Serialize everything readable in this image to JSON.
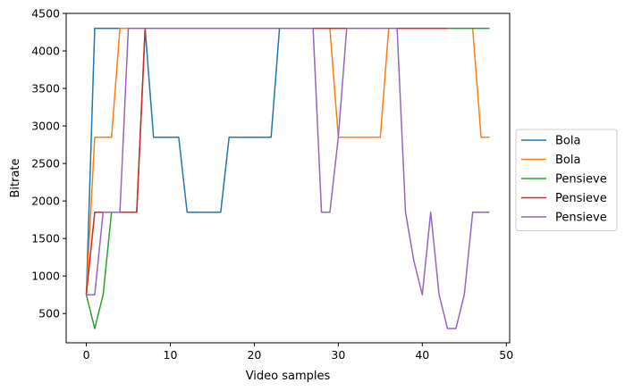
{
  "chart_data": {
    "type": "line",
    "xlabel": "Video samples",
    "ylabel": "Bitrate",
    "xlim": [
      -2.4,
      50.4
    ],
    "ylim": [
      110,
      4500
    ],
    "xticks": [
      0,
      10,
      20,
      30,
      40,
      50
    ],
    "yticks": [
      500,
      1000,
      1500,
      2000,
      2500,
      3000,
      3500,
      4000,
      4500
    ],
    "grid": false,
    "legend_position": "right",
    "series": [
      {
        "name": "Bola",
        "color": "#1f77b4",
        "x": [
          0,
          1,
          2,
          3,
          4,
          5,
          6,
          7,
          8,
          9,
          10,
          11,
          12,
          13,
          14,
          15,
          16,
          17,
          18,
          19,
          20,
          21,
          22,
          23,
          24,
          25,
          26,
          27,
          28,
          29,
          30,
          31,
          32,
          33,
          34,
          35,
          36,
          37,
          38,
          39,
          40,
          41,
          42,
          43,
          44,
          45,
          46,
          47,
          48
        ],
        "values": [
          750,
          4300,
          4300,
          4300,
          4300,
          4300,
          4300,
          4300,
          2850,
          2850,
          2850,
          2850,
          1850,
          1850,
          1850,
          1850,
          1850,
          2850,
          2850,
          2850,
          2850,
          2850,
          2850,
          4300,
          4300,
          4300,
          4300,
          4300,
          4300,
          4300,
          4300,
          4300,
          4300,
          4300,
          4300,
          4300,
          4300,
          4300,
          4300,
          4300,
          4300,
          4300,
          4300,
          4300,
          4300,
          4300,
          4300,
          4300,
          4300
        ]
      },
      {
        "name": "Bola",
        "color": "#ff7f0e",
        "x": [
          0,
          1,
          2,
          3,
          4,
          5,
          6,
          7,
          8,
          9,
          10,
          11,
          12,
          13,
          14,
          15,
          16,
          17,
          18,
          19,
          20,
          21,
          22,
          23,
          24,
          25,
          26,
          27,
          28,
          29,
          30,
          31,
          32,
          33,
          34,
          35,
          36,
          37,
          38,
          39,
          40,
          41,
          42,
          43,
          44,
          45,
          46,
          47,
          48
        ],
        "values": [
          750,
          2850,
          2850,
          2850,
          4300,
          4300,
          4300,
          4300,
          4300,
          4300,
          4300,
          4300,
          4300,
          4300,
          4300,
          4300,
          4300,
          4300,
          4300,
          4300,
          4300,
          4300,
          4300,
          4300,
          4300,
          4300,
          4300,
          4300,
          4300,
          4300,
          2850,
          2850,
          2850,
          2850,
          2850,
          2850,
          4300,
          4300,
          4300,
          4300,
          4300,
          4300,
          4300,
          4300,
          4300,
          4300,
          4300,
          2850,
          2850
        ]
      },
      {
        "name": "Pensieve",
        "color": "#2ca02c",
        "x": [
          0,
          1,
          2,
          3,
          4,
          5,
          6,
          7,
          8,
          9,
          10,
          11,
          12,
          13,
          14,
          15,
          16,
          17,
          18,
          19,
          20,
          21,
          22,
          23,
          24,
          25,
          26,
          27,
          28,
          29,
          30,
          31,
          32,
          33,
          34,
          35,
          36,
          37,
          38,
          39,
          40,
          41,
          42,
          43,
          44,
          45,
          46,
          47,
          48
        ],
        "values": [
          750,
          300,
          750,
          1850,
          1850,
          1850,
          1850,
          4300,
          4300,
          4300,
          4300,
          4300,
          4300,
          4300,
          4300,
          4300,
          4300,
          4300,
          4300,
          4300,
          4300,
          4300,
          4300,
          4300,
          4300,
          4300,
          4300,
          4300,
          4300,
          4300,
          4300,
          4300,
          4300,
          4300,
          4300,
          4300,
          4300,
          4300,
          4300,
          4300,
          4300,
          4300,
          4300,
          4300,
          4300,
          4300,
          4300,
          4300,
          4300
        ]
      },
      {
        "name": "Pensieve",
        "color": "#d62728",
        "x": [
          0,
          1,
          2,
          3,
          4,
          5,
          6,
          7,
          8,
          9,
          10,
          11,
          12,
          13,
          14,
          15,
          16,
          17,
          18,
          19,
          20,
          21,
          22,
          23,
          24,
          25,
          26,
          27,
          28,
          29,
          30,
          31,
          32,
          33,
          34,
          35,
          36,
          37,
          38,
          39,
          40,
          41,
          42,
          43
        ],
        "values": [
          750,
          1850,
          1850,
          1850,
          1850,
          1850,
          1850,
          4300,
          4300,
          4300,
          4300,
          4300,
          4300,
          4300,
          4300,
          4300,
          4300,
          4300,
          4300,
          4300,
          4300,
          4300,
          4300,
          4300,
          4300,
          4300,
          4300,
          4300,
          4300,
          4300,
          4300,
          4300,
          4300,
          4300,
          4300,
          4300,
          4300,
          4300,
          4300,
          4300,
          4300,
          4300,
          4300,
          4300
        ]
      },
      {
        "name": "Pensieve",
        "color": "#9467bd",
        "x": [
          0,
          1,
          2,
          3,
          4,
          5,
          6,
          7,
          8,
          9,
          10,
          11,
          12,
          13,
          14,
          15,
          16,
          17,
          18,
          19,
          20,
          21,
          22,
          23,
          24,
          25,
          26,
          27,
          28,
          29,
          30,
          31,
          32,
          33,
          34,
          35,
          36,
          37,
          38,
          39,
          40,
          41,
          42,
          43,
          44,
          45,
          46,
          47,
          48
        ],
        "values": [
          750,
          750,
          1850,
          1850,
          1850,
          4300,
          4300,
          4300,
          4300,
          4300,
          4300,
          4300,
          4300,
          4300,
          4300,
          4300,
          4300,
          4300,
          4300,
          4300,
          4300,
          4300,
          4300,
          4300,
          4300,
          4300,
          4300,
          4300,
          1850,
          1850,
          2850,
          4300,
          4300,
          4300,
          4300,
          4300,
          4300,
          4300,
          1850,
          1200,
          750,
          1850,
          750,
          300,
          300,
          750,
          1850,
          1850,
          1850
        ]
      }
    ]
  }
}
